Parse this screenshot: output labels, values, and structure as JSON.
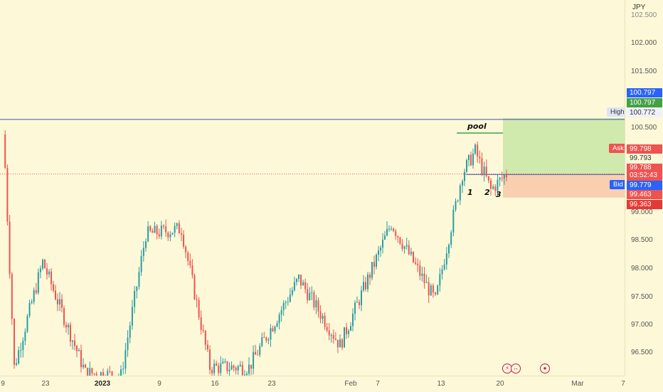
{
  "currency": "JPY",
  "colors": {
    "background": "#fdf9d8",
    "up_candle": "#2a9ca3",
    "down_candle": "#ef5350",
    "high_line": "#3f51b5",
    "profit_zone": "#c8e6a6",
    "stop_zone": "#f8c8a8",
    "bid": "#2962ff",
    "ask": "#ef5350"
  },
  "price_axis": {
    "ticks": [
      "102.500",
      "102.000",
      "101.500",
      "100.500",
      "99.000",
      "98.500",
      "98.000",
      "97.500",
      "97.000",
      "96.500"
    ],
    "labels": {
      "blue_top": "100.797",
      "green_top": "100.797",
      "high_price": "100.772",
      "ask_price": "99.798",
      "mid_price": "99.793",
      "current_price": "99.788",
      "countdown": "03:52:43",
      "bid_price": "99.779",
      "entry_price": "99.463",
      "stop_price": "99.363"
    },
    "tags": {
      "high": "High",
      "ask": "Ask",
      "bid": "Bid"
    }
  },
  "time_axis": {
    "ticks": [
      {
        "label": "9",
        "bold": false
      },
      {
        "label": "23",
        "bold": false
      },
      {
        "label": "2023",
        "bold": true
      },
      {
        "label": "9",
        "bold": false
      },
      {
        "label": "16",
        "bold": false
      },
      {
        "label": "23",
        "bold": false
      },
      {
        "label": "Feb",
        "bold": false
      },
      {
        "label": "7",
        "bold": false
      },
      {
        "label": "13",
        "bold": false
      },
      {
        "label": "20",
        "bold": false
      },
      {
        "label": "Mar",
        "bold": false
      },
      {
        "label": "7",
        "bold": false
      }
    ]
  },
  "annotations": {
    "pool": "pool",
    "touch1": "1",
    "touch2": "2",
    "touch3": "3"
  },
  "events": [
    {
      "icon": "lightning-icon",
      "glyph": "⚡"
    },
    {
      "icon": "earnings-icon",
      "glyph": "↔"
    },
    {
      "icon": "dividend-icon",
      "glyph": "●"
    }
  ],
  "chart_data": {
    "type": "candlestick",
    "symbol_currency": "JPY",
    "ylim": [
      96.15,
      102.85
    ],
    "reference_lines": {
      "high": 100.772,
      "current": 99.788,
      "bid": 99.779
    },
    "position": {
      "entry": 99.463,
      "take_profit": 100.797,
      "stop_loss": 99.363
    },
    "key_points": [
      {
        "t": "Dec 9",
        "p": 100.8
      },
      {
        "t": "Dec 10",
        "p": 96.3
      },
      {
        "t": "Dec 20",
        "p": 98.2
      },
      {
        "t": "Dec 28",
        "p": 96.2
      },
      {
        "t": "Jan 1",
        "p": 96.15
      },
      {
        "t": "Jan 5",
        "p": 98.7
      },
      {
        "t": "Jan 12",
        "p": 98.8
      },
      {
        "t": "Jan 16",
        "p": 96.3
      },
      {
        "t": "Jan 23",
        "p": 96.3
      },
      {
        "t": "Jan 27",
        "p": 97.9
      },
      {
        "t": "Feb 1",
        "p": 96.7
      },
      {
        "t": "Feb 5",
        "p": 98.9
      },
      {
        "t": "Feb 13",
        "p": 97.5
      },
      {
        "t": "Feb 16",
        "p": 99.8
      },
      {
        "t": "Feb 17",
        "p": 100.2
      },
      {
        "t": "Feb 20",
        "p": 99.5
      },
      {
        "t": "Feb 21",
        "p": 99.79
      }
    ]
  }
}
